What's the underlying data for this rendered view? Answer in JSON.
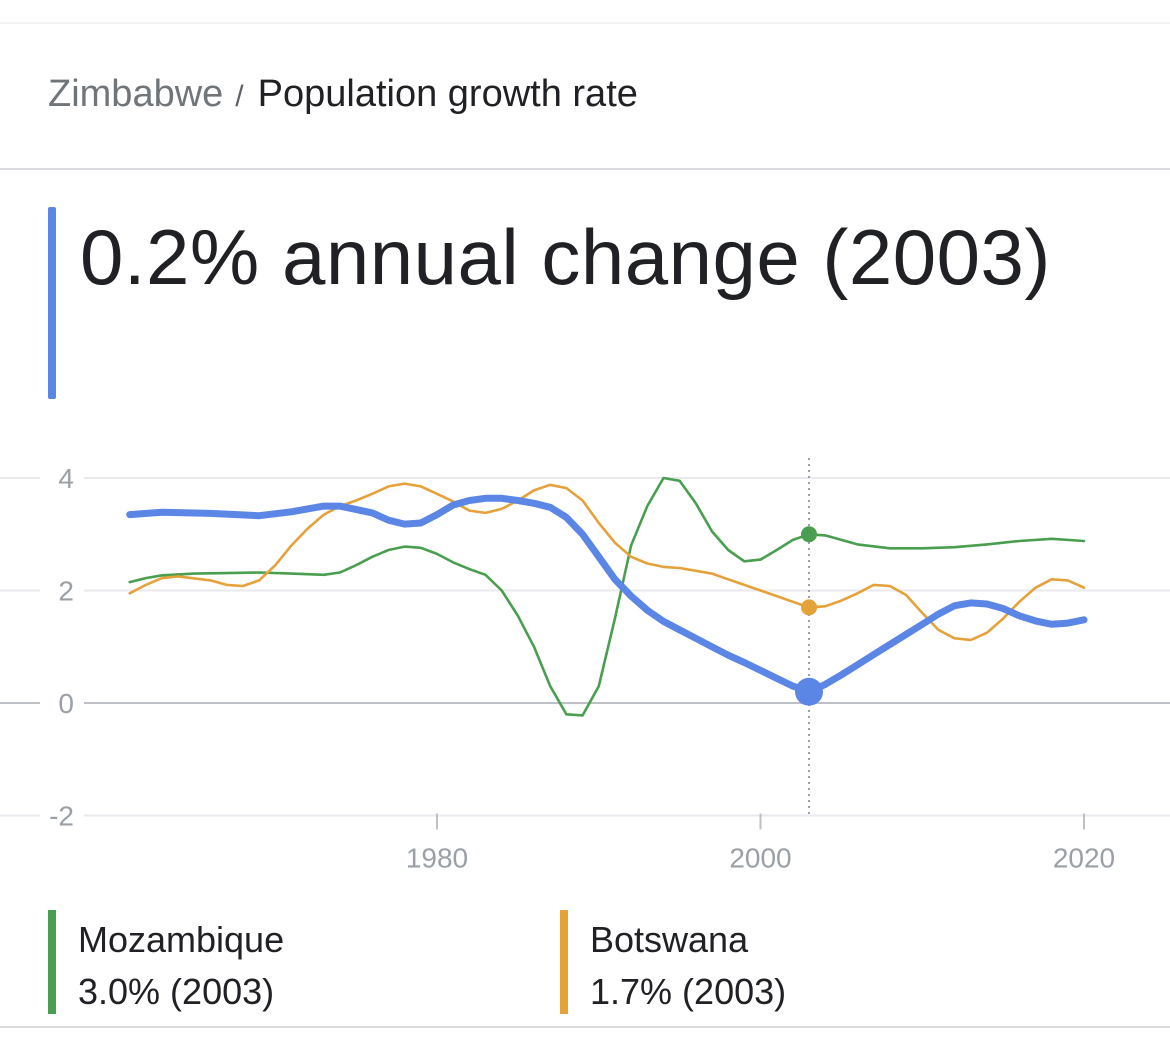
{
  "breadcrumb": {
    "country": "Zimbabwe",
    "separator": "/",
    "topic": "Population growth rate"
  },
  "headline": {
    "text": "0.2% annual change (2003)"
  },
  "colors": {
    "zimbabwe": "#5b86e5",
    "mozambique": "#4a9e4f",
    "botswana": "#e5a13a",
    "grid": "#e8eaed",
    "axis": "#bdc1c6"
  },
  "legend": [
    {
      "name": "Mozambique",
      "value": "3.0% (2003)"
    },
    {
      "name": "Botswana",
      "value": "1.7% (2003)"
    }
  ],
  "chart_data": {
    "type": "line",
    "title": "Population growth rate",
    "ylim": [
      -2,
      4
    ],
    "xlim": [
      1960,
      2022
    ],
    "y_ticks": [
      "4",
      "2",
      "0",
      "-2"
    ],
    "x_ticks": [
      "1980",
      "2000",
      "2020"
    ],
    "grid": true,
    "highlight_year": 2003,
    "series": [
      {
        "name": "Zimbabwe",
        "colorKey": "zimbabwe",
        "primary": true,
        "x": [
          1961,
          1963,
          1966,
          1969,
          1971,
          1973,
          1974,
          1976,
          1977,
          1978,
          1979,
          1980,
          1981,
          1982,
          1983,
          1984,
          1985,
          1986,
          1987,
          1988,
          1989,
          1990,
          1991,
          1992,
          1993,
          1994,
          1995,
          1996,
          1997,
          1998,
          1999,
          2000,
          2001,
          2002,
          2003,
          2004,
          2005,
          2006,
          2007,
          2008,
          2009,
          2010,
          2011,
          2012,
          2013,
          2014,
          2015,
          2016,
          2017,
          2018,
          2019,
          2020
        ],
        "y": [
          3.35,
          3.39,
          3.37,
          3.33,
          3.4,
          3.5,
          3.5,
          3.38,
          3.25,
          3.18,
          3.2,
          3.35,
          3.52,
          3.6,
          3.64,
          3.64,
          3.6,
          3.55,
          3.48,
          3.3,
          3.0,
          2.6,
          2.2,
          1.9,
          1.65,
          1.45,
          1.3,
          1.15,
          1.0,
          0.85,
          0.72,
          0.58,
          0.44,
          0.3,
          0.2,
          0.33,
          0.5,
          0.68,
          0.86,
          1.04,
          1.22,
          1.4,
          1.58,
          1.73,
          1.78,
          1.76,
          1.68,
          1.55,
          1.46,
          1.4,
          1.42,
          1.48
        ]
      },
      {
        "name": "Mozambique",
        "colorKey": "mozambique",
        "x": [
          1961,
          1962,
          1963,
          1965,
          1967,
          1969,
          1971,
          1973,
          1974,
          1975,
          1976,
          1977,
          1978,
          1979,
          1980,
          1981,
          1982,
          1983,
          1984,
          1985,
          1986,
          1987,
          1988,
          1989,
          1990,
          1991,
          1992,
          1993,
          1994,
          1995,
          1996,
          1997,
          1998,
          1999,
          2000,
          2001,
          2002,
          2003,
          2004,
          2006,
          2008,
          2010,
          2012,
          2014,
          2016,
          2018,
          2020
        ],
        "y": [
          2.15,
          2.22,
          2.27,
          2.3,
          2.31,
          2.32,
          2.3,
          2.28,
          2.32,
          2.45,
          2.6,
          2.72,
          2.78,
          2.76,
          2.65,
          2.5,
          2.38,
          2.28,
          2.0,
          1.55,
          1.0,
          0.3,
          -0.2,
          -0.22,
          0.3,
          1.5,
          2.8,
          3.5,
          4.0,
          3.95,
          3.55,
          3.05,
          2.72,
          2.52,
          2.55,
          2.72,
          2.9,
          3.0,
          2.98,
          2.82,
          2.75,
          2.75,
          2.77,
          2.82,
          2.88,
          2.92,
          2.88
        ]
      },
      {
        "name": "Botswana",
        "colorKey": "botswana",
        "x": [
          1961,
          1962,
          1963,
          1964,
          1966,
          1967,
          1968,
          1969,
          1970,
          1971,
          1972,
          1973,
          1974,
          1975,
          1976,
          1977,
          1978,
          1979,
          1980,
          1981,
          1982,
          1983,
          1984,
          1985,
          1986,
          1987,
          1988,
          1989,
          1990,
          1991,
          1992,
          1993,
          1994,
          1995,
          1996,
          1997,
          1998,
          1999,
          2000,
          2001,
          2002,
          2003,
          2004,
          2005,
          2006,
          2007,
          2008,
          2009,
          2010,
          2011,
          2012,
          2013,
          2014,
          2015,
          2016,
          2017,
          2018,
          2019,
          2020
        ],
        "y": [
          1.95,
          2.1,
          2.22,
          2.25,
          2.18,
          2.1,
          2.08,
          2.18,
          2.45,
          2.8,
          3.1,
          3.35,
          3.5,
          3.6,
          3.72,
          3.85,
          3.9,
          3.85,
          3.72,
          3.58,
          3.42,
          3.38,
          3.45,
          3.6,
          3.78,
          3.88,
          3.82,
          3.6,
          3.2,
          2.85,
          2.6,
          2.48,
          2.42,
          2.4,
          2.35,
          2.3,
          2.2,
          2.1,
          2.0,
          1.9,
          1.8,
          1.7,
          1.72,
          1.82,
          1.95,
          2.1,
          2.08,
          1.92,
          1.6,
          1.3,
          1.15,
          1.12,
          1.25,
          1.5,
          1.8,
          2.05,
          2.2,
          2.18,
          2.05
        ]
      }
    ],
    "markers": [
      {
        "series": "Zimbabwe",
        "x": 2003,
        "y": 0.2
      },
      {
        "series": "Mozambique",
        "x": 2003,
        "y": 3.0
      },
      {
        "series": "Botswana",
        "x": 2003,
        "y": 1.7
      }
    ]
  }
}
